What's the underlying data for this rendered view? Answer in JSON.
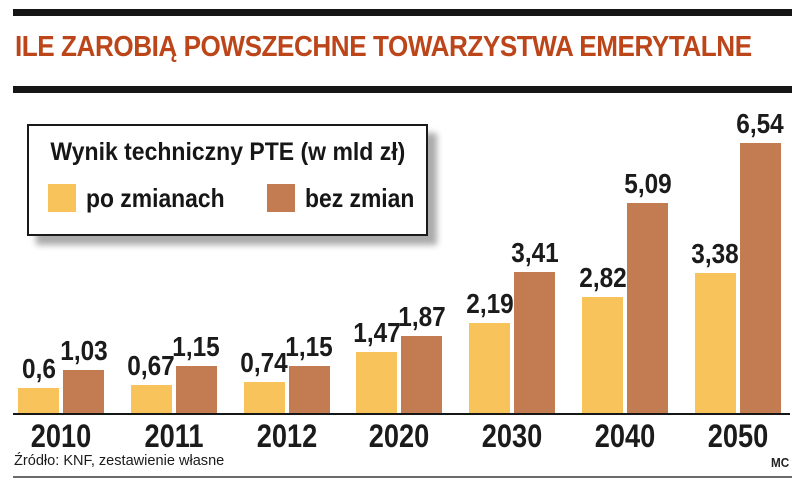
{
  "header": {
    "title": "ILE ZAROBIĄ POWSZECHNE TOWARZYSTWA EMERYTALNE",
    "title_color": "#bc451a"
  },
  "legend": {
    "title": "Wynik techniczny PTE (w mld zł)",
    "items": [
      {
        "label": "po zmianach",
        "color": "#f7c35a"
      },
      {
        "label": "bez zmian",
        "color": "#c37c52"
      }
    ]
  },
  "chart_data": {
    "type": "bar",
    "title": "Wynik techniczny PTE (w mld zł)",
    "unit": "mld zł",
    "categories": [
      "2010",
      "2011",
      "2012",
      "2020",
      "2030",
      "2040",
      "2050"
    ],
    "series": [
      {
        "name": "po zmianach",
        "color": "#f7c35a",
        "values": [
          0.6,
          0.67,
          0.74,
          1.47,
          2.19,
          2.82,
          3.38
        ],
        "labels": [
          "0,6",
          "0,67",
          "0,74",
          "1,47",
          "2,19",
          "2,82",
          "3,38"
        ]
      },
      {
        "name": "bez zmian",
        "color": "#c37c52",
        "values": [
          1.03,
          1.15,
          1.15,
          1.87,
          3.41,
          5.09,
          6.54
        ],
        "labels": [
          "1,03",
          "1,15",
          "1,15",
          "1,87",
          "3,41",
          "5,09",
          "6,54"
        ]
      }
    ],
    "ylim": [
      0,
      7
    ],
    "grid": false,
    "legend_position": "top-left",
    "value_labels": "above-bars"
  },
  "footer": {
    "source": "Źródło: KNF, zestawienie własne",
    "credit": "MC"
  }
}
